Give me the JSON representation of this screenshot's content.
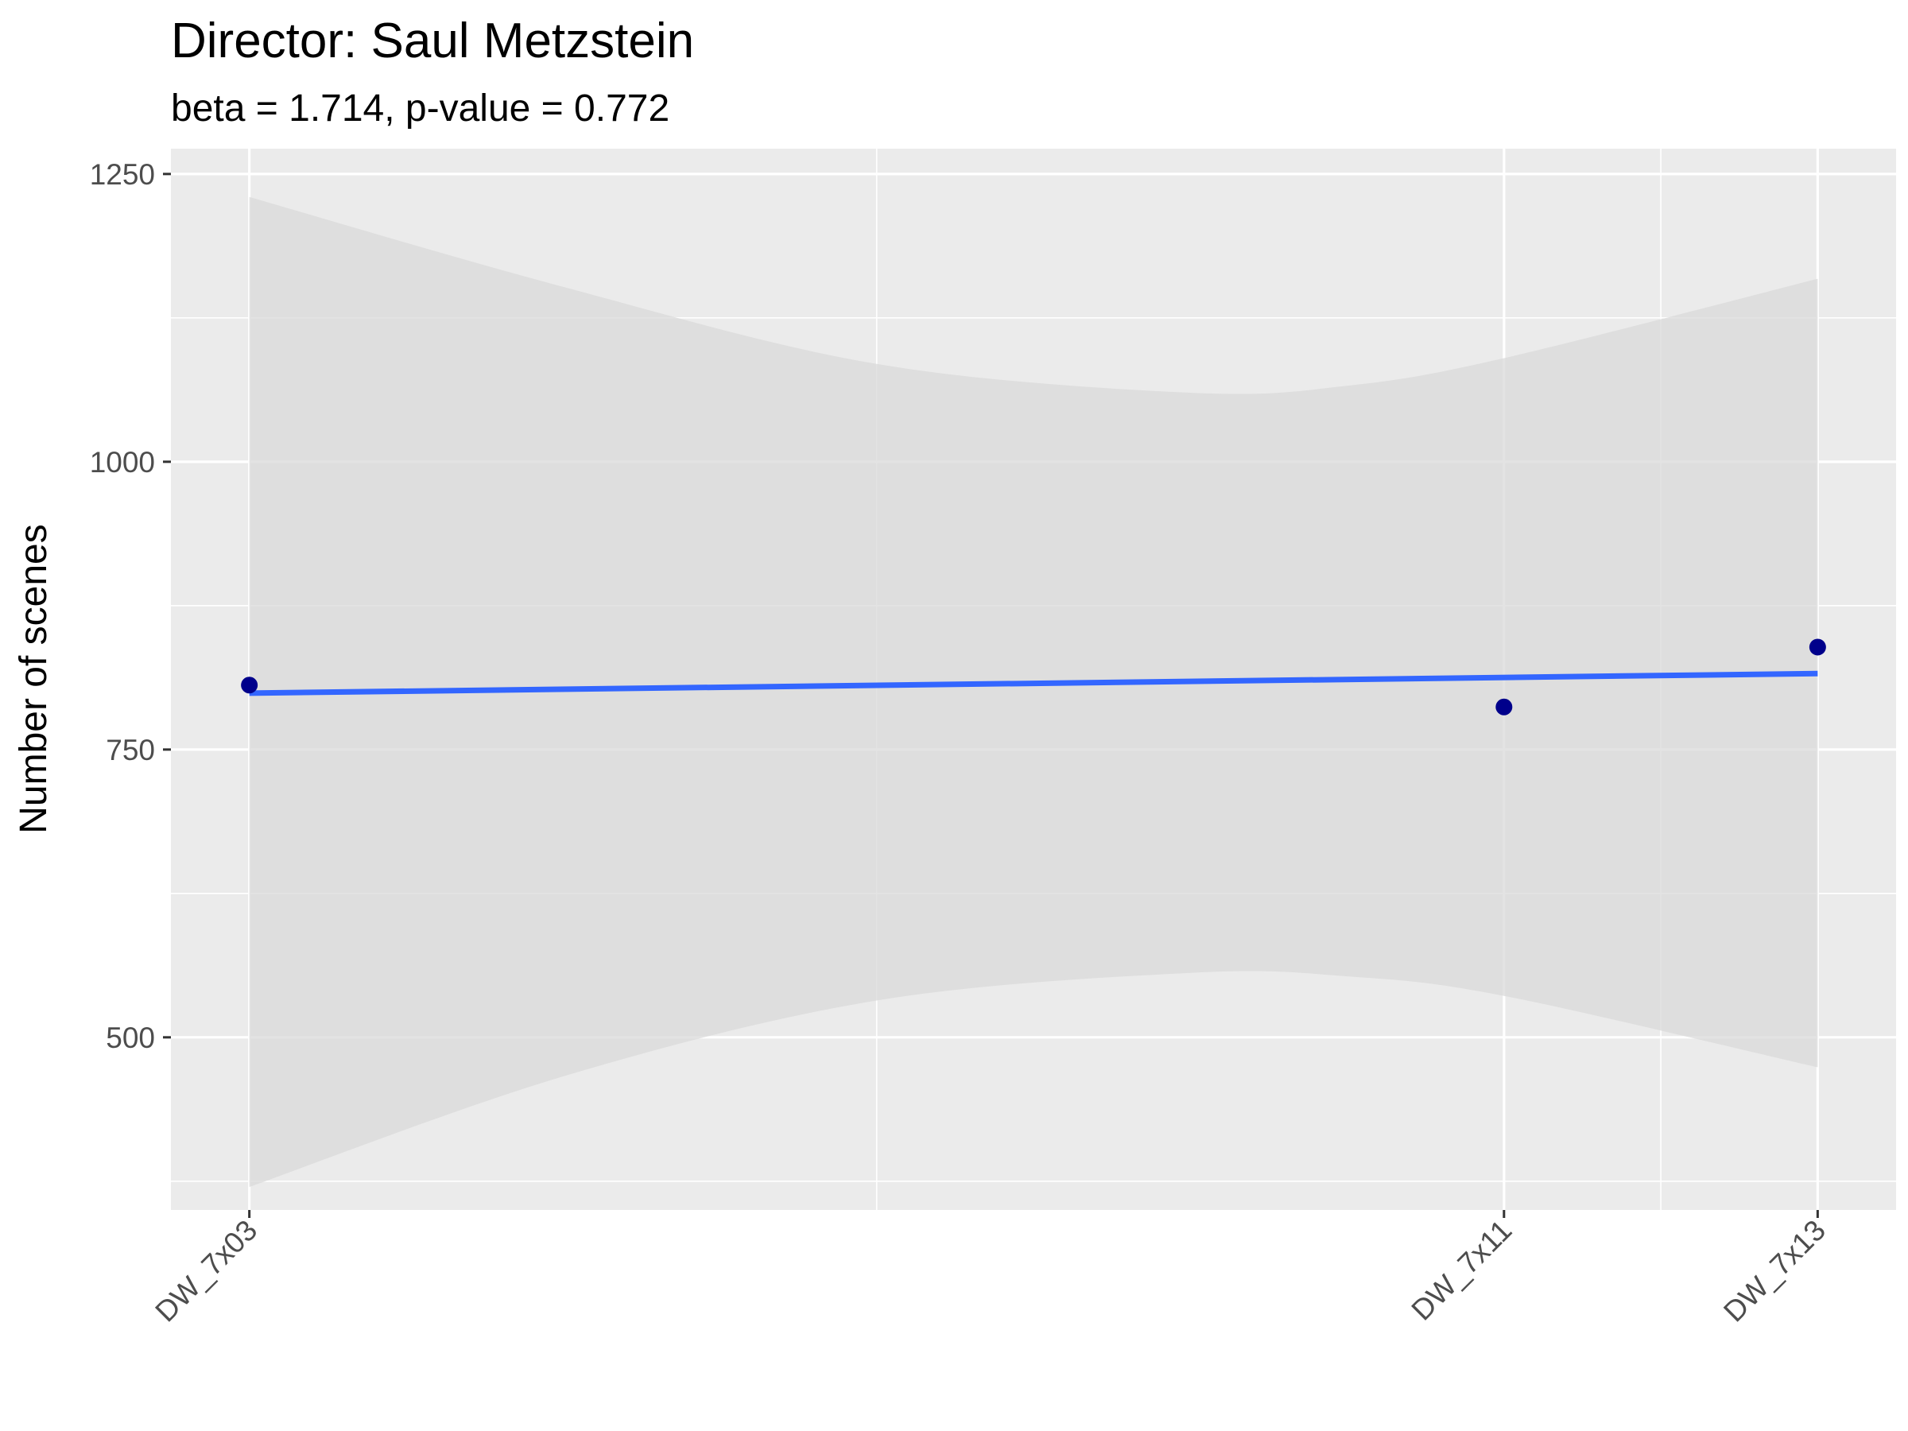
{
  "chart_data": {
    "type": "scatter",
    "title": "Director: Saul Metzstein",
    "subtitle": "beta = 1.714, p-value = 0.772",
    "xlabel": "",
    "ylabel": "Number of scenes",
    "x_categories": [
      "DW_7x03",
      "DW_7x11",
      "DW_7x13"
    ],
    "x_index": [
      3,
      11,
      13
    ],
    "xlim": [
      2.5,
      13.5
    ],
    "x_minor_breaks": [
      7,
      12
    ],
    "ylim": [
      350,
      1272
    ],
    "y_ticks": [
      500,
      750,
      1000,
      1250
    ],
    "y_minor_breaks": [
      625,
      875,
      1125,
      375
    ],
    "grid": true,
    "legend": "none",
    "points": [
      {
        "x": 3,
        "label": "DW_7x03",
        "y": 806
      },
      {
        "x": 11,
        "label": "DW_7x11",
        "y": 787
      },
      {
        "x": 13,
        "label": "DW_7x13",
        "y": 839
      }
    ],
    "fit_line": {
      "x": [
        3,
        13
      ],
      "y": [
        799,
        816
      ]
    },
    "confidence_band": {
      "x": [
        3,
        5,
        7,
        9,
        10,
        11,
        13
      ],
      "upper": [
        1230,
        1152,
        1085,
        1060,
        1066,
        1090,
        1159
      ],
      "lower": [
        370,
        466,
        532,
        556,
        553,
        536,
        474
      ]
    },
    "colors": {
      "panel_bg": "#EBEBEB",
      "grid_major": "#FFFFFF",
      "point": "#00008B",
      "fit_line": "#3366FF",
      "band": "#D9D9D9"
    }
  }
}
